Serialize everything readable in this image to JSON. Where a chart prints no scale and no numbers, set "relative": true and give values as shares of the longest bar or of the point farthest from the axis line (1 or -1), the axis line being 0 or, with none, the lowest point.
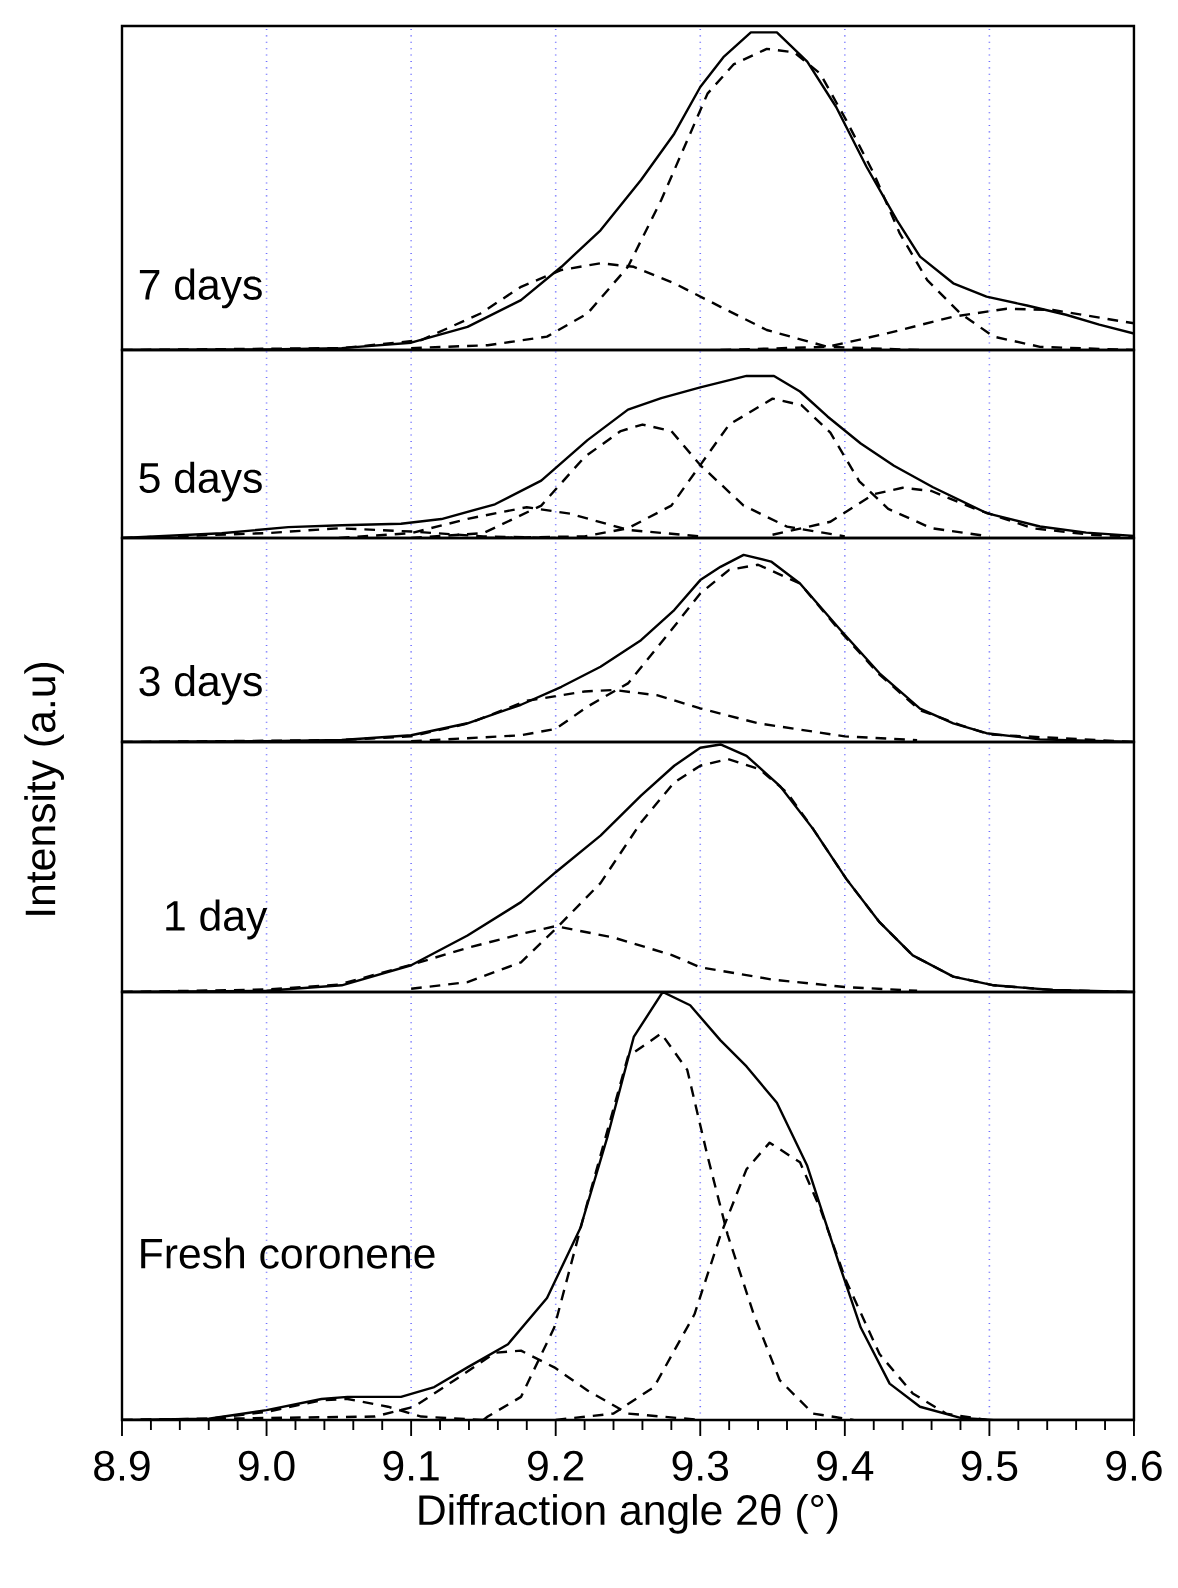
{
  "chart_data": [
    {
      "type": "line",
      "relative": true,
      "xlim": [
        8.9,
        9.6
      ],
      "xticks": [
        8.9,
        9.0,
        9.1,
        9.2,
        9.3,
        9.4,
        9.5,
        9.6
      ],
      "tick_labels": false,
      "grid": "x",
      "marker": "none",
      "annotations": [
        "7 days"
      ],
      "series": [
        {
          "color": "#000000",
          "line_style": "solid",
          "x": [
            8.9,
            9.0,
            9.052,
            9.1,
            9.139,
            9.176,
            9.204,
            9.231,
            9.259,
            9.282,
            9.3,
            9.316,
            9.335,
            9.353,
            9.374,
            9.394,
            9.415,
            9.436,
            9.452,
            9.475,
            9.498,
            9.526,
            9.553,
            9.576,
            9.6
          ],
          "values": [
            0,
            0.002,
            0.006,
            0.023,
            0.073,
            0.157,
            0.262,
            0.377,
            0.535,
            0.681,
            0.828,
            0.922,
            1.0,
            1.0,
            0.908,
            0.765,
            0.577,
            0.409,
            0.294,
            0.21,
            0.168,
            0.14,
            0.111,
            0.08,
            0.052
          ]
        },
        {
          "color": "#000000",
          "line_style": "dashed",
          "x": [
            9.1,
            9.153,
            9.194,
            9.222,
            9.25,
            9.273,
            9.291,
            9.305,
            9.323,
            9.346,
            9.365,
            9.383,
            9.401,
            9.42,
            9.438,
            9.457,
            9.48,
            9.503,
            9.535,
            9.6
          ],
          "values": [
            0.006,
            0.015,
            0.042,
            0.115,
            0.262,
            0.472,
            0.66,
            0.807,
            0.899,
            0.948,
            0.937,
            0.87,
            0.723,
            0.556,
            0.367,
            0.22,
            0.115,
            0.042,
            0.01,
            0
          ]
        },
        {
          "color": "#000000",
          "line_style": "dashed",
          "x": [
            8.9,
            9.052,
            9.107,
            9.148,
            9.176,
            9.204,
            9.231,
            9.254,
            9.282,
            9.314,
            9.346,
            9.388,
            9.452
          ],
          "values": [
            0,
            0.006,
            0.031,
            0.115,
            0.199,
            0.252,
            0.273,
            0.262,
            0.21,
            0.136,
            0.063,
            0.01,
            0
          ]
        },
        {
          "color": "#000000",
          "line_style": "dashed",
          "x": [
            9.314,
            9.388,
            9.429,
            9.475,
            9.512,
            9.544,
            9.572,
            9.6
          ],
          "values": [
            0,
            0.01,
            0.052,
            0.105,
            0.13,
            0.126,
            0.105,
            0.084
          ]
        }
      ]
    },
    {
      "type": "line",
      "relative": true,
      "xlim": [
        8.9,
        9.6
      ],
      "xticks": [
        8.9,
        9.0,
        9.1,
        9.2,
        9.3,
        9.4,
        9.5,
        9.6
      ],
      "tick_labels": false,
      "grid": "x",
      "marker": "none",
      "annotations": [
        "5 days"
      ],
      "series": [
        {
          "color": "#000000",
          "line_style": "solid",
          "x": [
            8.9,
            8.969,
            9.015,
            9.052,
            9.093,
            9.121,
            9.158,
            9.19,
            9.222,
            9.25,
            9.273,
            9.3,
            9.332,
            9.351,
            9.369,
            9.388,
            9.411,
            9.434,
            9.461,
            9.498,
            9.535,
            9.567,
            9.6
          ],
          "values": [
            0,
            0.029,
            0.067,
            0.079,
            0.088,
            0.117,
            0.208,
            0.354,
            0.604,
            0.792,
            0.863,
            0.929,
            1.0,
            1.0,
            0.904,
            0.75,
            0.583,
            0.446,
            0.313,
            0.154,
            0.071,
            0.033,
            0.013
          ]
        },
        {
          "color": "#000000",
          "line_style": "dashed",
          "x": [
            8.9,
            9.0,
            9.05,
            9.1,
            9.15,
            9.2
          ],
          "values": [
            0,
            0.03,
            0.06,
            0.04,
            0.01,
            0
          ]
        },
        {
          "color": "#000000",
          "line_style": "dashed",
          "x": [
            9.05,
            9.1,
            9.14,
            9.18,
            9.21,
            9.25,
            9.3
          ],
          "values": [
            0,
            0.03,
            0.12,
            0.19,
            0.15,
            0.05,
            0.01
          ]
        },
        {
          "color": "#000000",
          "line_style": "dashed",
          "x": [
            9.1,
            9.15,
            9.19,
            9.22,
            9.245,
            9.26,
            9.28,
            9.3,
            9.33,
            9.36,
            9.4
          ],
          "values": [
            0,
            0.03,
            0.2,
            0.5,
            0.66,
            0.7,
            0.66,
            0.45,
            0.2,
            0.07,
            0.01
          ]
        },
        {
          "color": "#000000",
          "line_style": "dashed",
          "x": [
            9.15,
            9.22,
            9.25,
            9.28,
            9.3,
            9.32,
            9.35,
            9.37,
            9.39,
            9.41,
            9.43,
            9.46,
            9.5
          ],
          "values": [
            0,
            0.01,
            0.06,
            0.2,
            0.45,
            0.7,
            0.86,
            0.82,
            0.65,
            0.35,
            0.18,
            0.06,
            0.01
          ]
        },
        {
          "color": "#000000",
          "line_style": "dashed",
          "x": [
            9.35,
            9.39,
            9.42,
            9.44,
            9.46,
            9.49,
            9.53,
            9.57,
            9.6
          ],
          "values": [
            0.02,
            0.1,
            0.27,
            0.31,
            0.29,
            0.18,
            0.06,
            0.02,
            0.01
          ]
        }
      ]
    },
    {
      "type": "line",
      "relative": true,
      "xlim": [
        8.9,
        9.6
      ],
      "xticks": [
        8.9,
        9.0,
        9.1,
        9.2,
        9.3,
        9.4,
        9.5,
        9.6
      ],
      "tick_labels": false,
      "grid": "x",
      "marker": "none",
      "annotations": [
        "3 days"
      ],
      "series": [
        {
          "color": "#000000",
          "line_style": "solid",
          "x": [
            8.9,
            9.0,
            9.052,
            9.1,
            9.139,
            9.176,
            9.204,
            9.231,
            9.259,
            9.282,
            9.3,
            9.314,
            9.33,
            9.349,
            9.369,
            9.397,
            9.424,
            9.452,
            9.475,
            9.498,
            9.535,
            9.6
          ],
          "values": [
            0,
            0.004,
            0.011,
            0.036,
            0.1,
            0.199,
            0.295,
            0.402,
            0.544,
            0.705,
            0.865,
            0.936,
            1.0,
            0.964,
            0.847,
            0.598,
            0.367,
            0.178,
            0.1,
            0.047,
            0.014,
            0
          ]
        },
        {
          "color": "#000000",
          "line_style": "dashed",
          "x": [
            9.1,
            9.176,
            9.2,
            9.222,
            9.25,
            9.28,
            9.3,
            9.32,
            9.34,
            9.369,
            9.397,
            9.424,
            9.452,
            9.48,
            9.5,
            9.6
          ],
          "values": [
            0.004,
            0.036,
            0.07,
            0.189,
            0.313,
            0.598,
            0.794,
            0.92,
            0.947,
            0.847,
            0.59,
            0.36,
            0.17,
            0.09,
            0.04,
            0
          ]
        },
        {
          "color": "#000000",
          "line_style": "dashed",
          "x": [
            8.9,
            9.05,
            9.1,
            9.14,
            9.18,
            9.22,
            9.24,
            9.27,
            9.3,
            9.34,
            9.4,
            9.45
          ],
          "values": [
            0,
            0.01,
            0.03,
            0.1,
            0.22,
            0.27,
            0.278,
            0.25,
            0.18,
            0.1,
            0.03,
            0.01
          ]
        }
      ]
    },
    {
      "type": "line",
      "relative": true,
      "xlim": [
        8.9,
        9.6
      ],
      "xticks": [
        8.9,
        9.0,
        9.1,
        9.2,
        9.3,
        9.4,
        9.5,
        9.6
      ],
      "tick_labels": false,
      "grid": "x",
      "marker": "none",
      "ylabel": "Intensity (a.u)",
      "annotations": [
        "1 day"
      ],
      "series": [
        {
          "color": "#000000",
          "line_style": "solid",
          "x": [
            8.9,
            9.0,
            9.052,
            9.1,
            9.139,
            9.176,
            9.2,
            9.231,
            9.259,
            9.282,
            9.3,
            9.314,
            9.332,
            9.355,
            9.378,
            9.401,
            9.424,
            9.447,
            9.475,
            9.503,
            9.544,
            9.6
          ],
          "values": [
            0,
            0.005,
            0.027,
            0.108,
            0.228,
            0.363,
            0.484,
            0.632,
            0.793,
            0.914,
            0.987,
            1.0,
            0.954,
            0.833,
            0.659,
            0.457,
            0.282,
            0.148,
            0.062,
            0.027,
            0.008,
            0
          ]
        },
        {
          "color": "#000000",
          "line_style": "dashed",
          "x": [
            9.1,
            9.139,
            9.176,
            9.2,
            9.231,
            9.259,
            9.282,
            9.3,
            9.319,
            9.341,
            9.36,
            9.378,
            9.401,
            9.424,
            9.447,
            9.475,
            9.503,
            9.544,
            9.6
          ],
          "values": [
            0.013,
            0.04,
            0.12,
            0.255,
            0.44,
            0.685,
            0.847,
            0.914,
            0.941,
            0.9,
            0.806,
            0.659,
            0.457,
            0.282,
            0.148,
            0.062,
            0.027,
            0.008,
            0
          ]
        },
        {
          "color": "#000000",
          "line_style": "dashed",
          "x": [
            8.9,
            9.0,
            9.05,
            9.1,
            9.14,
            9.18,
            9.2,
            9.24,
            9.28,
            9.3,
            9.35,
            9.4,
            9.45
          ],
          "values": [
            0,
            0.01,
            0.03,
            0.11,
            0.18,
            0.24,
            0.266,
            0.22,
            0.15,
            0.1,
            0.05,
            0.02,
            0.005
          ]
        }
      ]
    },
    {
      "type": "line",
      "relative": true,
      "xlim": [
        8.9,
        9.6
      ],
      "xticks": [
        8.9,
        {
          "value": 9.0,
          "label": "9.0"
        },
        9.1,
        9.2,
        9.3,
        9.4,
        9.5,
        9.6
      ],
      "tick_labels": "x",
      "grid": "x",
      "marker": "none",
      "xlabel": "Diffraction angle 2θ (°)",
      "annotations": [
        "Fresh coronene"
      ],
      "series": [
        {
          "color": "#000000",
          "line_style": "solid",
          "x": [
            8.9,
            8.96,
            9.0,
            9.038,
            9.056,
            9.093,
            9.116,
            9.139,
            9.167,
            9.194,
            9.217,
            9.236,
            9.254,
            9.274,
            9.293,
            9.314,
            9.332,
            9.353,
            9.374,
            9.397,
            9.411,
            9.431,
            9.452,
            9.48,
            9.503,
            9.6
          ],
          "values": [
            0,
            0.003,
            0.023,
            0.049,
            0.054,
            0.054,
            0.077,
            0.123,
            0.177,
            0.285,
            0.448,
            0.664,
            0.895,
            1.0,
            0.969,
            0.887,
            0.826,
            0.741,
            0.594,
            0.355,
            0.216,
            0.085,
            0.031,
            0.005,
            0,
            0
          ]
        },
        {
          "color": "#000000",
          "line_style": "dashed",
          "x": [
            9.15,
            9.153,
            9.176,
            9.199,
            9.222,
            9.25,
            9.273,
            9.291,
            9.305,
            9.319,
            9.337,
            9.355,
            9.378,
            9.406
          ],
          "values": [
            0,
            0.008,
            0.054,
            0.216,
            0.509,
            0.849,
            0.903,
            0.818,
            0.617,
            0.432,
            0.247,
            0.093,
            0.015,
            0
          ]
        },
        {
          "color": "#000000",
          "line_style": "dashed",
          "x": [
            9.2,
            9.24,
            9.268,
            9.296,
            9.314,
            9.332,
            9.348,
            9.369,
            9.383,
            9.401,
            9.424,
            9.447,
            9.47,
            9.498
          ],
          "values": [
            0,
            0.015,
            0.077,
            0.247,
            0.432,
            0.586,
            0.648,
            0.602,
            0.494,
            0.324,
            0.154,
            0.062,
            0.015,
            0
          ]
        },
        {
          "color": "#000000",
          "line_style": "dashed",
          "x": [
            8.9,
            9.075,
            9.102,
            9.13,
            9.158,
            9.176,
            9.199,
            9.222,
            9.25,
            9.3
          ],
          "values": [
            0,
            0.008,
            0.031,
            0.093,
            0.157,
            0.162,
            0.123,
            0.069,
            0.015,
            0
          ]
        },
        {
          "color": "#000000",
          "line_style": "dashed",
          "x": [
            8.9,
            8.96,
            9.0,
            9.038,
            9.056,
            9.084,
            9.107,
            9.15
          ],
          "values": [
            0,
            0.003,
            0.019,
            0.046,
            0.049,
            0.031,
            0.008,
            0
          ]
        }
      ]
    }
  ]
}
